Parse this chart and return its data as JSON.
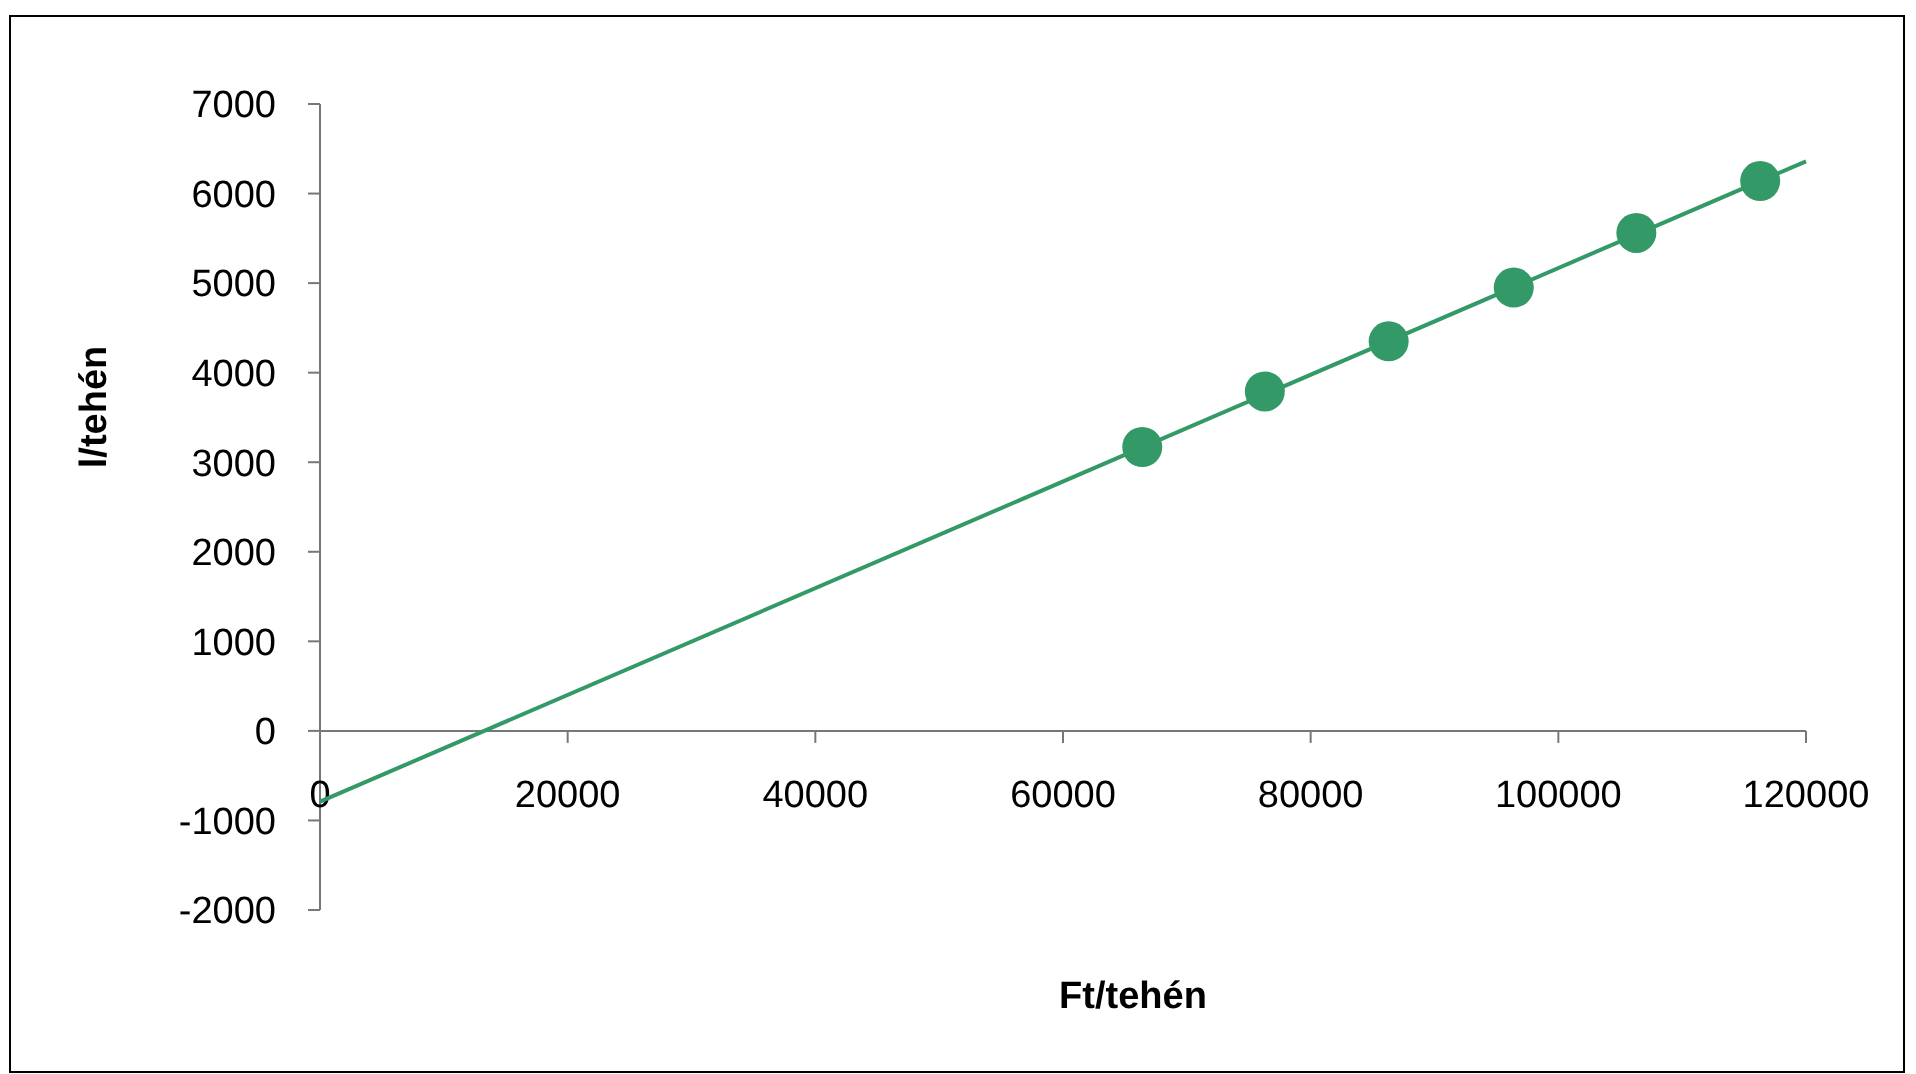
{
  "chart_data": {
    "type": "scatter",
    "xlabel": "Ft/tehén",
    "ylabel": "l/tehén",
    "series": [
      {
        "color": "#339966",
        "marker": "circle",
        "x": [
          66400,
          76300,
          86300,
          96400,
          106300,
          116300
        ],
        "values": [
          3170,
          3790,
          4350,
          4950,
          5560,
          6140
        ]
      },
      {
        "type": "line",
        "color": "#339966",
        "x": [
          0,
          120000
        ],
        "values": [
          -790,
          6360
        ]
      }
    ],
    "xlim": [
      0,
      120000
    ],
    "xticks": [
      0,
      20000,
      40000,
      60000,
      80000,
      100000,
      120000
    ],
    "ylim": [
      -2000,
      7000
    ],
    "yticks": [
      -2000,
      -1000,
      0,
      1000,
      2000,
      3000,
      4000,
      5000,
      6000,
      7000
    ]
  }
}
